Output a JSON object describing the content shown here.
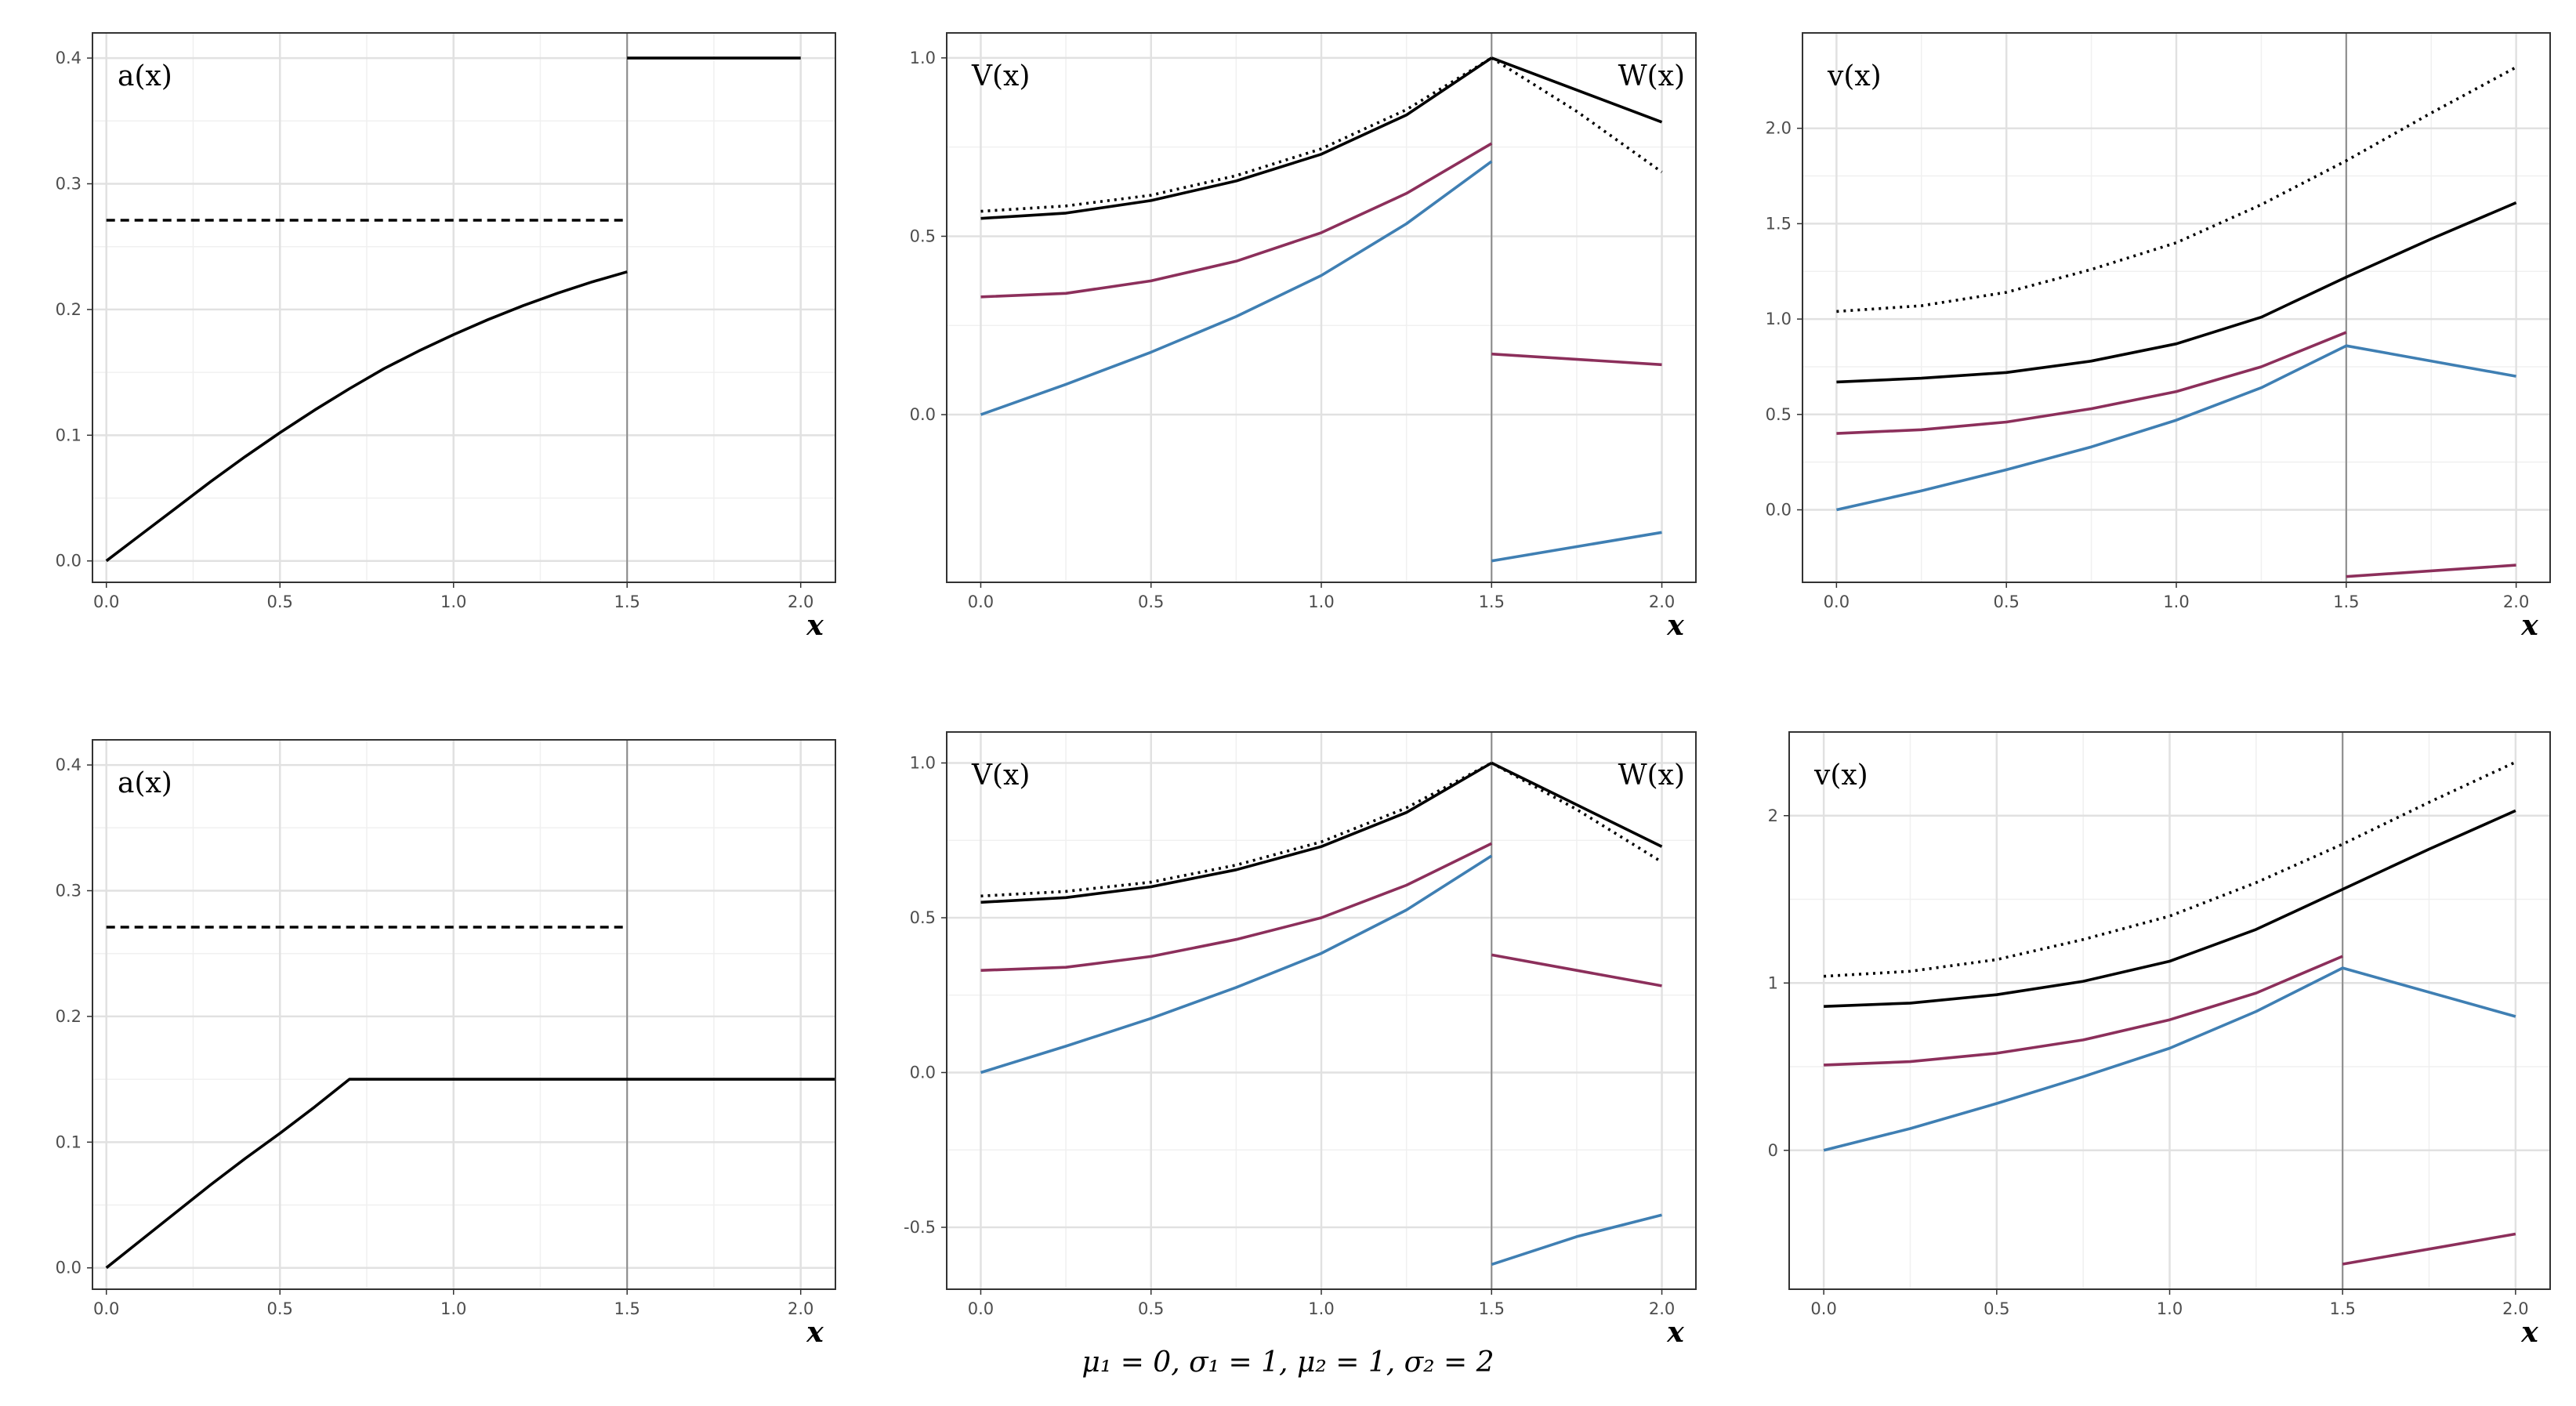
{
  "caption": "μ₁ = 0, σ₁ = 1, μ₂ = 1, σ₂ = 2",
  "colors": {
    "black": "#000000",
    "purple": "#8c2f5b",
    "blue": "#3f7fb3",
    "grid_major": "#e1e1e1",
    "grid_minor": "#f0f0f0",
    "divider": "#8a8a8a"
  },
  "chart_data": [
    {
      "type": "line",
      "panel": "top-left",
      "label": "a(x)",
      "xlabel": "x",
      "xlim": [
        -0.04,
        2.1
      ],
      "ylim": [
        -0.017,
        0.42
      ],
      "xticks": [
        0,
        0.5,
        1,
        1.5,
        2
      ],
      "xtick_labels": [
        "0.0",
        "0.5",
        "1.0",
        "1.5",
        "2.0"
      ],
      "yticks": [
        0,
        0.1,
        0.2,
        0.3,
        0.4
      ],
      "ytick_labels": [
        "0.0",
        "0.1",
        "0.2",
        "0.3",
        "0.4"
      ],
      "divider_x": 1.5,
      "label_right": "",
      "series": [
        {
          "name": "a1",
          "color": "black",
          "style": "solid",
          "x": [
            0,
            0.1,
            0.2,
            0.3,
            0.4,
            0.5,
            0.6,
            0.7,
            0.8,
            0.9,
            1.0,
            1.1,
            1.2,
            1.3,
            1.4,
            1.5
          ],
          "y": [
            0,
            0.021,
            0.042,
            0.063,
            0.083,
            0.102,
            0.12,
            0.137,
            0.153,
            0.167,
            0.18,
            0.192,
            0.203,
            0.213,
            0.222,
            0.23
          ]
        },
        {
          "name": "a2",
          "color": "black",
          "style": "solid",
          "x": [
            1.5,
            2.0
          ],
          "y": [
            0.4,
            0.4
          ]
        },
        {
          "name": "a-threshold",
          "color": "black",
          "style": "dashed",
          "x": [
            0,
            1.5
          ],
          "y": [
            0.271,
            0.271
          ]
        }
      ]
    },
    {
      "type": "line",
      "panel": "top-middle",
      "label": "V(x)",
      "label_right": "W(x)",
      "xlabel": "x",
      "xlim": [
        -0.1,
        2.1
      ],
      "ylim": [
        -0.47,
        1.07
      ],
      "xticks": [
        0,
        0.5,
        1,
        1.5,
        2
      ],
      "xtick_labels": [
        "0.0",
        "0.5",
        "1.0",
        "1.5",
        "2.0"
      ],
      "yticks": [
        0,
        0.5,
        1.0
      ],
      "ytick_labels": [
        "0.0",
        "0.5",
        "1.0"
      ],
      "divider_x": 1.5,
      "series": [
        {
          "name": "V-black",
          "color": "black",
          "style": "solid",
          "x": [
            0,
            0.25,
            0.5,
            0.75,
            1.0,
            1.25,
            1.5
          ],
          "y": [
            0.55,
            0.565,
            0.6,
            0.655,
            0.73,
            0.84,
            1.0
          ]
        },
        {
          "name": "V-dotted",
          "color": "black",
          "style": "dotted",
          "x": [
            0,
            0.25,
            0.5,
            0.75,
            1.0,
            1.25,
            1.5
          ],
          "y": [
            0.57,
            0.585,
            0.615,
            0.67,
            0.745,
            0.855,
            1.0
          ]
        },
        {
          "name": "V-purple",
          "color": "purple",
          "style": "solid",
          "x": [
            0,
            0.25,
            0.5,
            0.75,
            1.0,
            1.25,
            1.5
          ],
          "y": [
            0.33,
            0.34,
            0.375,
            0.43,
            0.51,
            0.62,
            0.76
          ]
        },
        {
          "name": "V-blue",
          "color": "blue",
          "style": "solid",
          "x": [
            0,
            0.25,
            0.5,
            0.75,
            1.0,
            1.25,
            1.5
          ],
          "y": [
            0,
            0.085,
            0.175,
            0.275,
            0.39,
            0.535,
            0.71
          ]
        },
        {
          "name": "W-black",
          "color": "black",
          "style": "solid",
          "x": [
            1.5,
            2.0
          ],
          "y": [
            1.0,
            0.82
          ]
        },
        {
          "name": "W-dotted",
          "color": "black",
          "style": "dotted",
          "x": [
            1.5,
            1.75,
            2.0
          ],
          "y": [
            1.0,
            0.85,
            0.68
          ]
        },
        {
          "name": "W-purple",
          "color": "purple",
          "style": "solid",
          "x": [
            1.5,
            2.0
          ],
          "y": [
            0.17,
            0.14
          ]
        },
        {
          "name": "W-blue",
          "color": "blue",
          "style": "solid",
          "x": [
            1.5,
            2.0
          ],
          "y": [
            -0.41,
            -0.33
          ]
        }
      ]
    },
    {
      "type": "line",
      "panel": "top-right",
      "label": "v(x)",
      "xlabel": "x",
      "xlim": [
        -0.1,
        2.1
      ],
      "ylim": [
        -0.38,
        2.5
      ],
      "xticks": [
        0,
        0.5,
        1,
        1.5,
        2
      ],
      "xtick_labels": [
        "0.0",
        "0.5",
        "1.0",
        "1.5",
        "2.0"
      ],
      "yticks": [
        0,
        0.5,
        1.0,
        1.5,
        2.0
      ],
      "ytick_labels": [
        "0.0",
        "0.5",
        "1.0",
        "1.5",
        "2.0"
      ],
      "divider_x": 1.5,
      "label_right": "",
      "series": [
        {
          "name": "v-dotted",
          "color": "black",
          "style": "dotted",
          "x": [
            0,
            0.25,
            0.5,
            0.75,
            1.0,
            1.25,
            1.5,
            1.75,
            2.0
          ],
          "y": [
            1.04,
            1.07,
            1.14,
            1.26,
            1.4,
            1.6,
            1.83,
            2.08,
            2.32
          ]
        },
        {
          "name": "v-black",
          "color": "black",
          "style": "solid",
          "x": [
            0,
            0.25,
            0.5,
            0.75,
            1.0,
            1.25,
            1.5,
            1.75,
            2.0
          ],
          "y": [
            0.67,
            0.69,
            0.72,
            0.78,
            0.87,
            1.01,
            1.22,
            1.42,
            1.61
          ]
        },
        {
          "name": "v-purple",
          "color": "purple",
          "style": "solid",
          "x": [
            0,
            0.25,
            0.5,
            0.75,
            1.0,
            1.25,
            1.5
          ],
          "y": [
            0.4,
            0.42,
            0.46,
            0.53,
            0.62,
            0.75,
            0.93
          ]
        },
        {
          "name": "v-blue",
          "color": "blue",
          "style": "solid",
          "x": [
            0,
            0.25,
            0.5,
            0.75,
            1.0,
            1.25,
            1.5,
            2.0
          ],
          "y": [
            0,
            0.1,
            0.21,
            0.33,
            0.47,
            0.64,
            0.86,
            0.7
          ]
        },
        {
          "name": "v-purple-low",
          "color": "purple",
          "style": "solid",
          "x": [
            1.5,
            2.0
          ],
          "y": [
            -0.35,
            -0.29
          ]
        }
      ]
    },
    {
      "type": "line",
      "panel": "bottom-left",
      "label": "a(x)",
      "xlabel": "x",
      "xlim": [
        -0.04,
        2.1
      ],
      "ylim": [
        -0.017,
        0.42
      ],
      "xticks": [
        0,
        0.5,
        1,
        1.5,
        2
      ],
      "xtick_labels": [
        "0.0",
        "0.5",
        "1.0",
        "1.5",
        "2.0"
      ],
      "yticks": [
        0,
        0.1,
        0.2,
        0.3,
        0.4
      ],
      "ytick_labels": [
        "0.0",
        "0.1",
        "0.2",
        "0.3",
        "0.4"
      ],
      "divider_x": 1.5,
      "label_right": "",
      "series": [
        {
          "name": "a-capped",
          "color": "black",
          "style": "solid",
          "x": [
            0,
            0.1,
            0.2,
            0.3,
            0.4,
            0.5,
            0.6,
            0.7,
            2.1
          ],
          "y": [
            0,
            0.022,
            0.044,
            0.066,
            0.087,
            0.107,
            0.128,
            0.15,
            0.15
          ]
        },
        {
          "name": "a-threshold",
          "color": "black",
          "style": "dashed",
          "x": [
            0,
            1.5
          ],
          "y": [
            0.271,
            0.271
          ]
        }
      ]
    },
    {
      "type": "line",
      "panel": "bottom-middle",
      "label": "V(x)",
      "label_right": "W(x)",
      "xlabel": "x",
      "xlim": [
        -0.1,
        2.1
      ],
      "ylim": [
        -0.7,
        1.1
      ],
      "xticks": [
        0,
        0.5,
        1,
        1.5,
        2
      ],
      "xtick_labels": [
        "0.0",
        "0.5",
        "1.0",
        "1.5",
        "2.0"
      ],
      "yticks": [
        -0.5,
        0,
        0.5,
        1.0
      ],
      "ytick_labels": [
        "-0.5",
        "0.0",
        "0.5",
        "1.0"
      ],
      "divider_x": 1.5,
      "series": [
        {
          "name": "V-black",
          "color": "black",
          "style": "solid",
          "x": [
            0,
            0.25,
            0.5,
            0.75,
            1.0,
            1.25,
            1.5
          ],
          "y": [
            0.55,
            0.565,
            0.6,
            0.655,
            0.73,
            0.84,
            1.0
          ]
        },
        {
          "name": "V-dotted",
          "color": "black",
          "style": "dotted",
          "x": [
            0,
            0.25,
            0.5,
            0.75,
            1.0,
            1.25,
            1.5
          ],
          "y": [
            0.57,
            0.585,
            0.615,
            0.67,
            0.745,
            0.855,
            1.0
          ]
        },
        {
          "name": "V-purple",
          "color": "purple",
          "style": "solid",
          "x": [
            0,
            0.25,
            0.5,
            0.75,
            1.0,
            1.25,
            1.5
          ],
          "y": [
            0.33,
            0.34,
            0.375,
            0.43,
            0.5,
            0.605,
            0.74
          ]
        },
        {
          "name": "V-blue",
          "color": "blue",
          "style": "solid",
          "x": [
            0,
            0.25,
            0.5,
            0.75,
            1.0,
            1.25,
            1.5
          ],
          "y": [
            0,
            0.085,
            0.175,
            0.275,
            0.385,
            0.525,
            0.7
          ]
        },
        {
          "name": "W-black",
          "color": "black",
          "style": "solid",
          "x": [
            1.5,
            2.0
          ],
          "y": [
            1.0,
            0.73
          ]
        },
        {
          "name": "W-dotted",
          "color": "black",
          "style": "dotted",
          "x": [
            1.5,
            1.75,
            2.0
          ],
          "y": [
            1.0,
            0.85,
            0.68
          ]
        },
        {
          "name": "W-purple",
          "color": "purple",
          "style": "solid",
          "x": [
            1.5,
            2.0
          ],
          "y": [
            0.38,
            0.28
          ]
        },
        {
          "name": "W-blue",
          "color": "blue",
          "style": "solid",
          "x": [
            1.5,
            1.75,
            2.0
          ],
          "y": [
            -0.62,
            -0.53,
            -0.46
          ]
        }
      ]
    },
    {
      "type": "line",
      "panel": "bottom-right",
      "label": "v(x)",
      "xlabel": "x",
      "xlim": [
        -0.1,
        2.1
      ],
      "ylim": [
        -0.83,
        2.5
      ],
      "xticks": [
        0,
        0.5,
        1,
        1.5,
        2
      ],
      "xtick_labels": [
        "0.0",
        "0.5",
        "1.0",
        "1.5",
        "2.0"
      ],
      "yticks": [
        0,
        1,
        2
      ],
      "ytick_labels": [
        "0",
        "1",
        "2"
      ],
      "divider_x": 1.5,
      "label_right": "",
      "series": [
        {
          "name": "v-dotted",
          "color": "black",
          "style": "dotted",
          "x": [
            0,
            0.25,
            0.5,
            0.75,
            1.0,
            1.25,
            1.5,
            1.75,
            2.0
          ],
          "y": [
            1.04,
            1.07,
            1.14,
            1.26,
            1.4,
            1.6,
            1.83,
            2.08,
            2.32
          ]
        },
        {
          "name": "v-black",
          "color": "black",
          "style": "solid",
          "x": [
            0,
            0.25,
            0.5,
            0.75,
            1.0,
            1.25,
            1.5,
            1.75,
            2.0
          ],
          "y": [
            0.86,
            0.88,
            0.93,
            1.01,
            1.13,
            1.32,
            1.56,
            1.8,
            2.03
          ]
        },
        {
          "name": "v-purple",
          "color": "purple",
          "style": "solid",
          "x": [
            0,
            0.25,
            0.5,
            0.75,
            1.0,
            1.25,
            1.5
          ],
          "y": [
            0.51,
            0.53,
            0.58,
            0.66,
            0.78,
            0.94,
            1.16
          ]
        },
        {
          "name": "v-blue",
          "color": "blue",
          "style": "solid",
          "x": [
            0,
            0.25,
            0.5,
            0.75,
            1.0,
            1.25,
            1.5,
            2.0
          ],
          "y": [
            0,
            0.13,
            0.28,
            0.44,
            0.61,
            0.83,
            1.09,
            0.8
          ]
        },
        {
          "name": "v-purple-low",
          "color": "purple",
          "style": "solid",
          "x": [
            1.5,
            2.0
          ],
          "y": [
            -0.68,
            -0.5
          ]
        }
      ]
    }
  ]
}
